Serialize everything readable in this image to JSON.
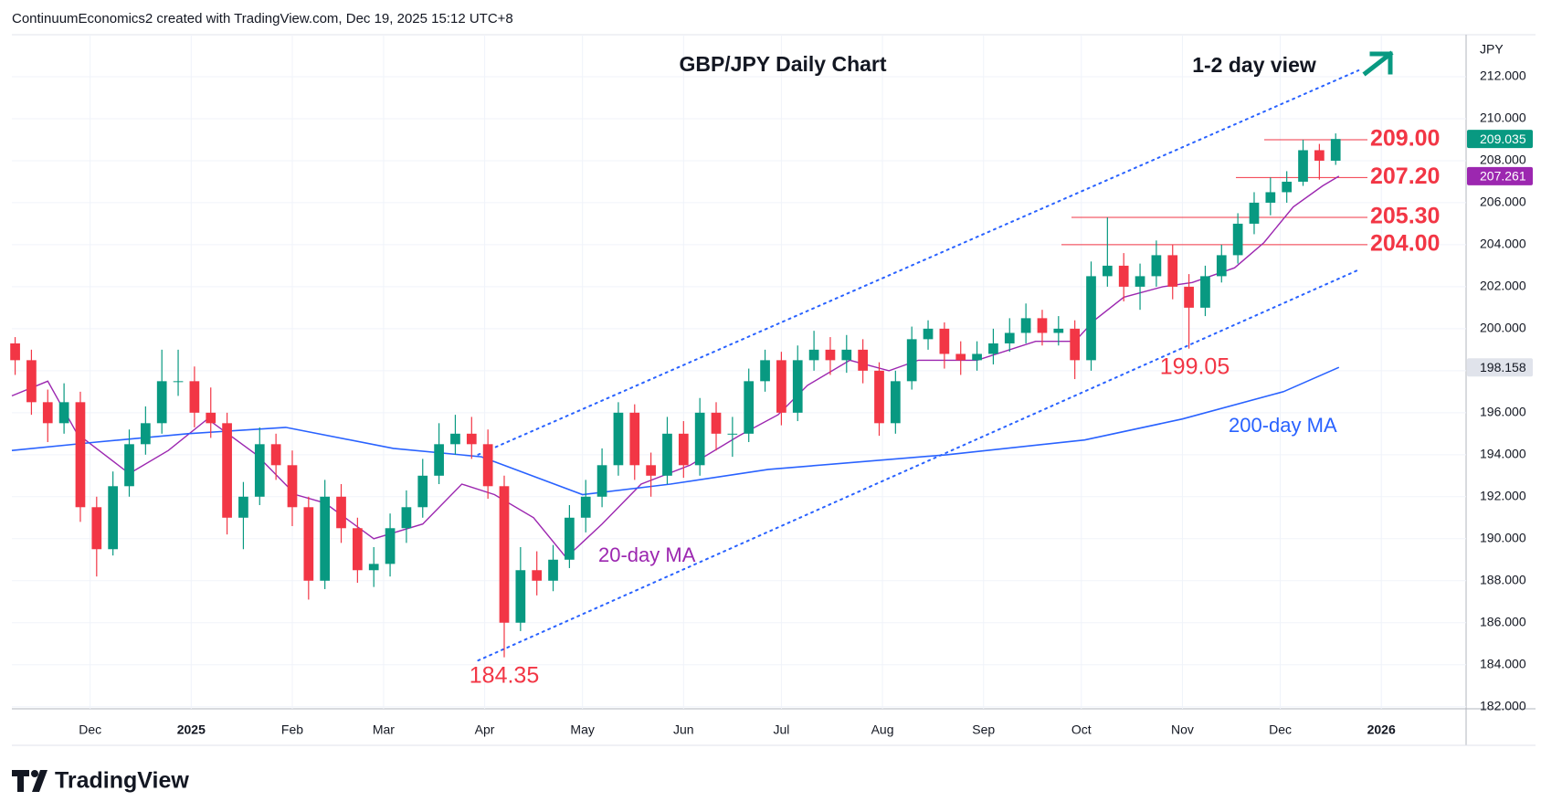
{
  "header": "ContinuumEconomics2 created with TradingView.com, Dec 19, 2025 15:12 UTC+8",
  "footer": "TradingView",
  "chart_data": {
    "type": "candlestick",
    "title": "GBP/JPY Daily Chart",
    "subtitle": "1-2 day view",
    "axis_unit": "JPY",
    "up_color": "#089981",
    "down_color": "#f23645",
    "x": [
      -23,
      -18,
      -13,
      -8,
      -3,
      2,
      7,
      12,
      17,
      22,
      27,
      32,
      37,
      42,
      47,
      52,
      57,
      62,
      67,
      72,
      77,
      82,
      87,
      92,
      97,
      102,
      107,
      112,
      117,
      122,
      127,
      132,
      137,
      142,
      147,
      152,
      157,
      162,
      167,
      172,
      177,
      182,
      187,
      192,
      197,
      202,
      207,
      212,
      217,
      222,
      227,
      232,
      237,
      242,
      247,
      252,
      257,
      262,
      267,
      272,
      277,
      282,
      287,
      292,
      297,
      302,
      307,
      312,
      317,
      322,
      327,
      332,
      337,
      342,
      347,
      352,
      357,
      362,
      367,
      372,
      377,
      382
    ],
    "open": [
      199.3,
      198.5,
      196.5,
      195.5,
      196.5,
      191.5,
      189.5,
      192.5,
      194.5,
      195.5,
      197.5,
      197.5,
      196.0,
      195.5,
      191.0,
      192.0,
      194.5,
      193.5,
      191.5,
      188.0,
      192.0,
      190.5,
      188.5,
      188.8,
      190.5,
      191.5,
      193.0,
      194.5,
      195.0,
      194.5,
      192.5,
      186.0,
      188.5,
      188.0,
      189.0,
      191.0,
      192.0,
      193.5,
      196.0,
      193.5,
      193.0,
      195.0,
      193.5,
      196.0,
      195.0,
      195.0,
      197.5,
      198.5,
      196.0,
      198.5,
      199.0,
      198.5,
      199.0,
      198.0,
      195.5,
      197.5,
      199.5,
      200.0,
      198.8,
      198.5,
      198.8,
      199.3,
      199.8,
      200.5,
      199.8,
      200.0,
      198.5,
      202.5,
      203.0,
      202.0,
      202.5,
      203.5,
      202.0,
      201.0,
      202.5,
      203.5,
      205.0,
      206.0,
      206.5,
      207.0,
      208.5,
      208.0
    ],
    "high": [
      199.6,
      199.0,
      197.1,
      197.4,
      197.0,
      192.0,
      193.2,
      195.2,
      196.3,
      199.0,
      199.0,
      198.2,
      197.2,
      196.0,
      192.7,
      195.3,
      195.0,
      194.2,
      192.0,
      192.8,
      192.6,
      191.0,
      189.6,
      191.2,
      192.3,
      193.8,
      195.5,
      195.9,
      195.8,
      195.2,
      193.0,
      189.6,
      189.4,
      189.7,
      191.6,
      192.8,
      194.3,
      196.5,
      196.4,
      194.1,
      195.8,
      195.6,
      196.7,
      196.5,
      195.8,
      198.1,
      199.0,
      198.9,
      199.2,
      199.9,
      199.6,
      199.7,
      199.5,
      198.4,
      198.0,
      200.1,
      200.4,
      200.3,
      199.4,
      199.4,
      200.0,
      200.5,
      201.2,
      200.9,
      200.6,
      200.4,
      203.2,
      205.3,
      203.6,
      203.1,
      204.2,
      204.0,
      202.6,
      203.0,
      204.0,
      205.5,
      206.5,
      207.2,
      207.5,
      209.0,
      208.8,
      209.3
    ],
    "low": [
      197.8,
      195.9,
      194.6,
      195.0,
      190.8,
      188.2,
      189.2,
      192.0,
      194.0,
      195.0,
      196.8,
      195.3,
      194.8,
      190.2,
      189.5,
      191.6,
      192.8,
      190.6,
      187.1,
      187.6,
      189.8,
      187.9,
      187.7,
      188.2,
      189.8,
      191.0,
      192.6,
      194.0,
      193.8,
      191.9,
      184.35,
      185.6,
      187.3,
      187.5,
      188.6,
      190.3,
      191.5,
      193.0,
      192.8,
      192.0,
      192.6,
      192.9,
      193.0,
      194.2,
      193.9,
      194.6,
      197.0,
      195.4,
      195.6,
      198.0,
      197.8,
      197.9,
      197.4,
      194.9,
      195.0,
      197.1,
      199.0,
      198.1,
      197.8,
      198.0,
      198.3,
      198.9,
      199.3,
      199.2,
      199.2,
      197.6,
      198.0,
      202.0,
      201.3,
      200.9,
      202.0,
      201.4,
      199.05,
      200.6,
      202.2,
      203.1,
      204.5,
      205.4,
      206.0,
      206.8,
      207.1,
      207.8
    ],
    "close": [
      198.5,
      196.5,
      195.5,
      196.5,
      191.5,
      189.5,
      192.5,
      194.5,
      195.5,
      197.5,
      197.5,
      196.0,
      195.5,
      191.0,
      192.0,
      194.5,
      193.5,
      191.5,
      188.0,
      192.0,
      190.5,
      188.5,
      188.8,
      190.5,
      191.5,
      193.0,
      194.5,
      195.0,
      194.5,
      192.5,
      186.0,
      188.5,
      188.0,
      189.0,
      191.0,
      192.0,
      193.5,
      196.0,
      193.5,
      193.0,
      195.0,
      193.5,
      196.0,
      195.0,
      195.0,
      197.5,
      198.5,
      196.0,
      198.5,
      199.0,
      198.5,
      199.0,
      198.0,
      195.5,
      197.5,
      199.5,
      200.0,
      198.8,
      198.5,
      198.8,
      199.3,
      199.8,
      200.5,
      199.8,
      200.0,
      198.5,
      202.5,
      203.0,
      202.0,
      202.5,
      203.5,
      202.0,
      201.0,
      202.5,
      203.5,
      205.0,
      206.0,
      206.5,
      207.0,
      208.5,
      208.0,
      209.035
    ],
    "series": [
      {
        "name": "20-day MA",
        "color": "#9c27b0",
        "x": [
          -24,
          -13,
          -4,
          12,
          24,
          36,
          51,
          63,
          72,
          87,
          102,
          114,
          124,
          136,
          146,
          157,
          169,
          184,
          199,
          211,
          220,
          233,
          245,
          254,
          272,
          290,
          302,
          308,
          317,
          329,
          338,
          351,
          360,
          369,
          378,
          383
        ],
        "values": [
          196.8,
          197.5,
          195.0,
          193.1,
          194.2,
          195.7,
          194.0,
          192.1,
          191.7,
          190.0,
          190.7,
          192.6,
          192.1,
          191.0,
          189.1,
          190.7,
          192.6,
          193.5,
          194.9,
          195.9,
          197.3,
          198.5,
          198.0,
          198.5,
          198.5,
          199.4,
          199.4,
          200.4,
          201.5,
          202.0,
          202.2,
          202.9,
          204.1,
          205.8,
          206.8,
          207.261
        ]
      },
      {
        "name": "200-day MA",
        "color": "#2962ff",
        "x": [
          -24,
          2,
          30,
          60,
          93,
          120,
          151,
          178,
          208,
          263,
          305,
          335,
          366,
          383
        ],
        "values": [
          194.2,
          194.6,
          195.0,
          195.3,
          194.3,
          193.9,
          192.1,
          192.6,
          193.3,
          194.0,
          194.7,
          195.7,
          197.0,
          198.158
        ]
      }
    ],
    "trend_lines": [
      {
        "color": "#2962ff",
        "x": [
          119,
          389
        ],
        "values": [
          194.0,
          212.3
        ]
      },
      {
        "color": "#2962ff",
        "x": [
          119,
          389
        ],
        "values": [
          184.2,
          202.8
        ]
      }
    ],
    "levels": [
      {
        "value": 209.0,
        "label": "209.00"
      },
      {
        "value": 207.2,
        "label": "207.20"
      },
      {
        "value": 205.3,
        "label": "205.30"
      },
      {
        "value": 204.0,
        "label": "204.00"
      }
    ],
    "annotations": [
      {
        "value": 184.35,
        "label": "184.35"
      },
      {
        "value": 199.05,
        "label": "199.05"
      }
    ],
    "price_tags": [
      {
        "value": 209.035,
        "label": "209.035",
        "color": "#089981"
      },
      {
        "value": 207.261,
        "label": "207.261",
        "color": "#9c27b0"
      },
      {
        "value": 198.158,
        "label": "198.158",
        "color": "#e0e3eb"
      }
    ],
    "level_color": "#f23645",
    "arrow_color": "#089981",
    "xlim": [
      -24,
      422
    ],
    "ylim": [
      181.9,
      214.0
    ],
    "xticks": [
      {
        "value": 0,
        "label": "Dec"
      },
      {
        "value": 31,
        "label": "2025"
      },
      {
        "value": 62,
        "label": "Feb"
      },
      {
        "value": 90,
        "label": "Mar"
      },
      {
        "value": 121,
        "label": "Apr"
      },
      {
        "value": 151,
        "label": "May"
      },
      {
        "value": 182,
        "label": "Jun"
      },
      {
        "value": 212,
        "label": "Jul"
      },
      {
        "value": 243,
        "label": "Aug"
      },
      {
        "value": 274,
        "label": "Sep"
      },
      {
        "value": 304,
        "label": "Oct"
      },
      {
        "value": 335,
        "label": "Nov"
      },
      {
        "value": 365,
        "label": "Dec"
      },
      {
        "value": 396,
        "label": "2026"
      }
    ],
    "yticks": [
      {
        "value": 182,
        "label": "182.000"
      },
      {
        "value": 184,
        "label": "184.000"
      },
      {
        "value": 186,
        "label": "186.000"
      },
      {
        "value": 188,
        "label": "188.000"
      },
      {
        "value": 190,
        "label": "190.000"
      },
      {
        "value": 192,
        "label": "192.000"
      },
      {
        "value": 194,
        "label": "194.000"
      },
      {
        "value": 196,
        "label": "196.000"
      },
      {
        "value": 198,
        "label": "198.000"
      },
      {
        "value": 200,
        "label": "200.000"
      },
      {
        "value": 202,
        "label": "202.000"
      },
      {
        "value": 204,
        "label": "204.000"
      },
      {
        "value": 206,
        "label": "206.000"
      },
      {
        "value": 208,
        "label": "208.000"
      },
      {
        "value": 210,
        "label": "210.000"
      },
      {
        "value": 212,
        "label": "212.000"
      }
    ],
    "grid": true
  }
}
